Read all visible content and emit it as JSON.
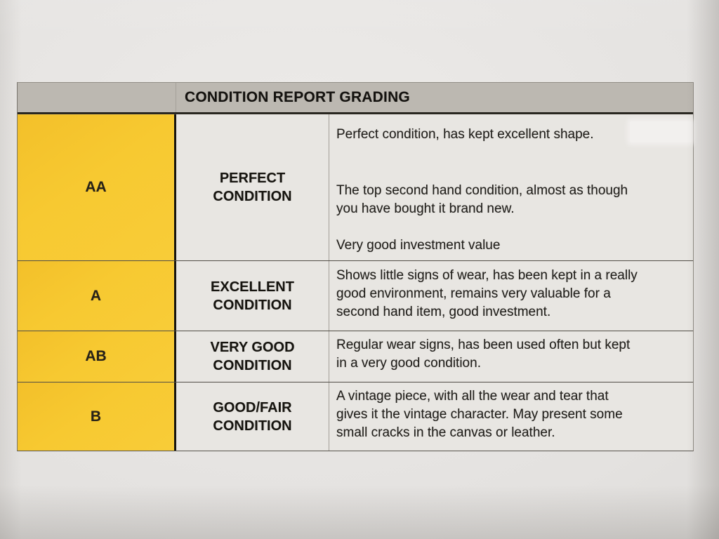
{
  "table": {
    "title": "CONDITION REPORT GRADING",
    "colors": {
      "header_bg": "#bcb8b1",
      "grade_cell_bg": "#f7c931",
      "cell_bg": "#e8e6e2",
      "paper_bg": "#e4e2e0",
      "text": "#201e1a",
      "border_dark": "#17150f"
    },
    "rows": [
      {
        "grade": "AA",
        "name_lines": [
          "PERFECT",
          "CONDITION"
        ],
        "blocks": [
          {
            "lines": [
              "Perfect condition, has kept excellent shape."
            ]
          },
          {
            "lines": [
              "The top second hand condition, almost as though",
              "you have bought it brand new."
            ]
          },
          {
            "lines": [
              "Very good investment value"
            ]
          }
        ]
      },
      {
        "grade": "A",
        "name_lines": [
          "EXCELLENT",
          "CONDITION"
        ],
        "blocks": [
          {
            "lines": [
              "Shows little signs of wear, has been kept in a really",
              "good environment, remains very valuable for a",
              "second hand item, good investment."
            ]
          }
        ]
      },
      {
        "grade": "AB",
        "name_lines": [
          "VERY GOOD",
          "CONDITION"
        ],
        "blocks": [
          {
            "lines": [
              "Regular wear signs, has been used often but kept",
              "in a very good condition."
            ]
          }
        ]
      },
      {
        "grade": "B",
        "name_lines": [
          "GOOD/FAIR",
          "CONDITION"
        ],
        "blocks": [
          {
            "lines": [
              "A vintage piece, with all the wear and tear that",
              "gives it the vintage character. May present some",
              "small cracks in the canvas or leather."
            ]
          }
        ]
      }
    ]
  }
}
